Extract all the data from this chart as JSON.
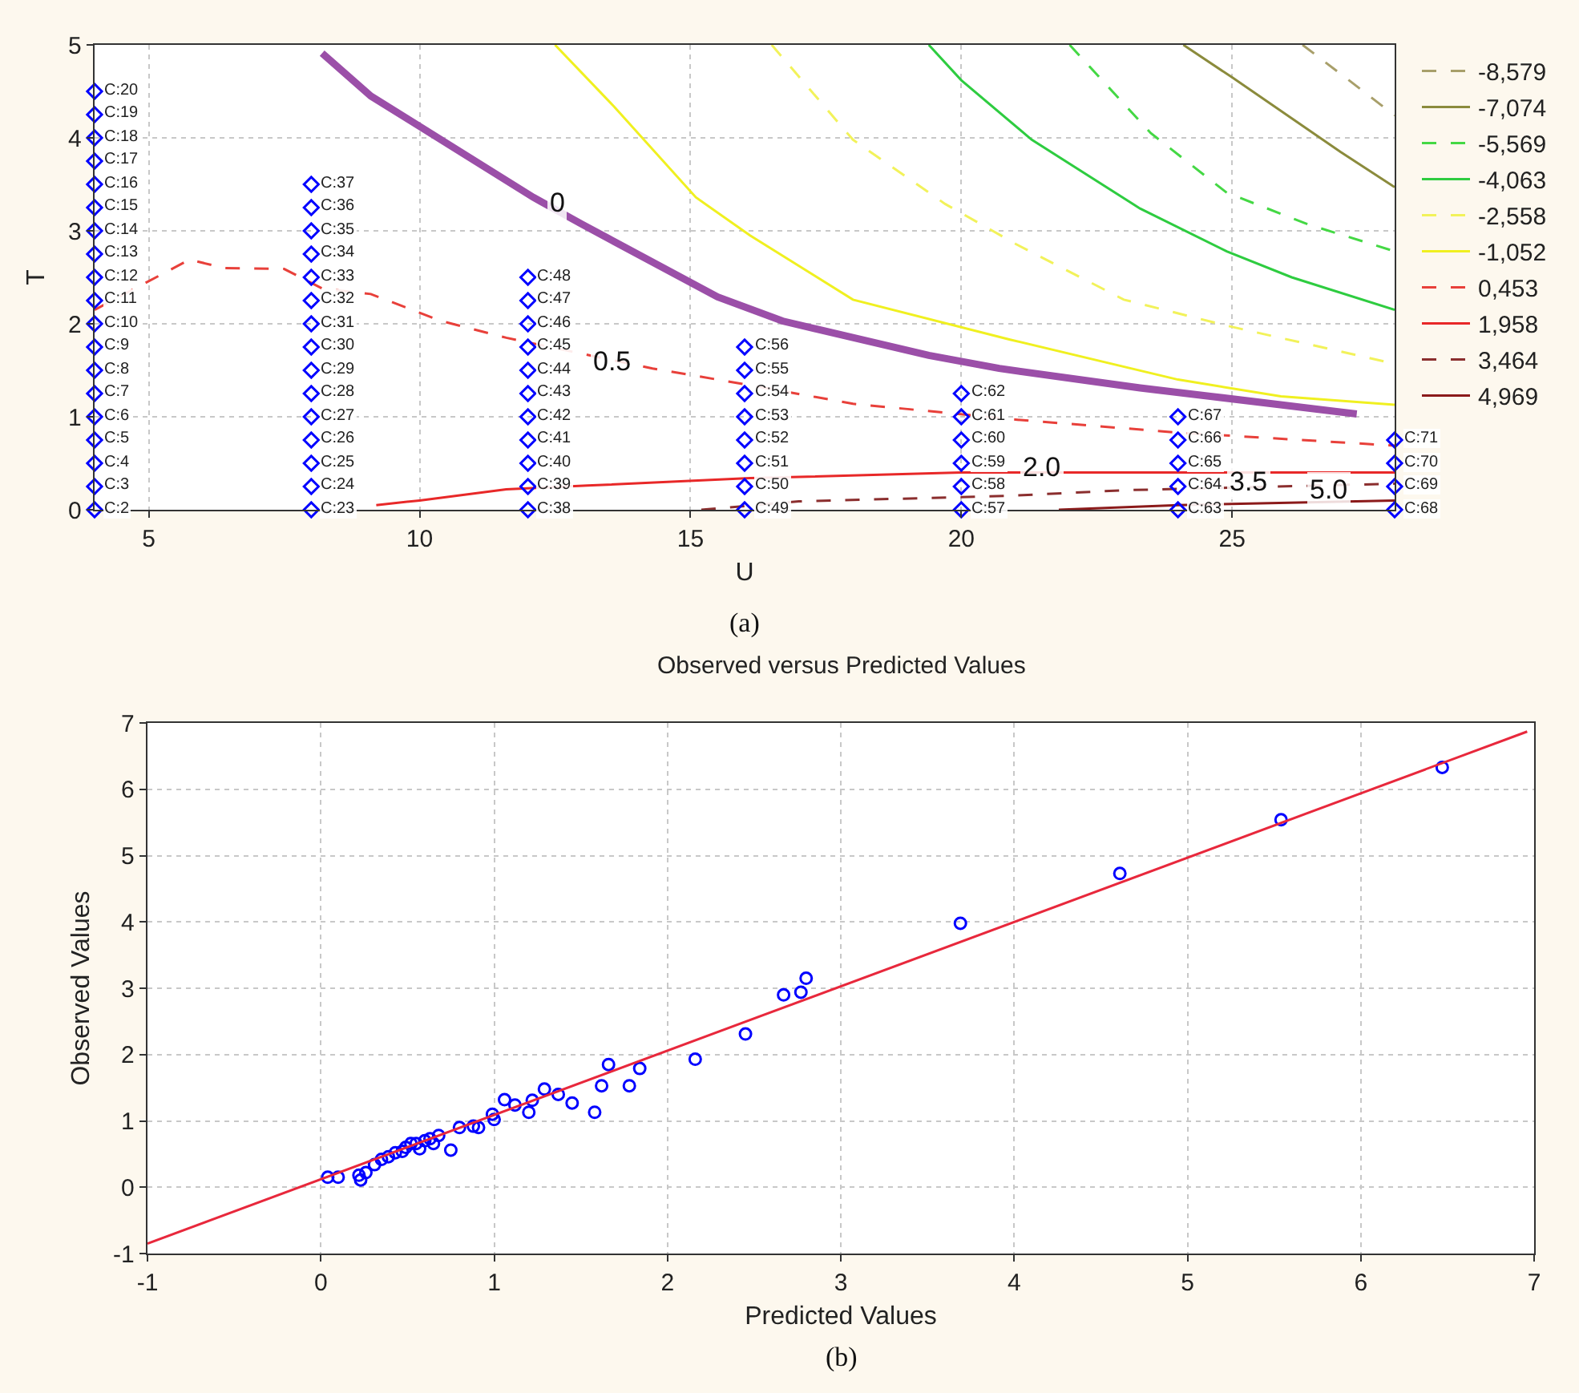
{
  "chart_data": [
    {
      "type": "line",
      "xlabel": "U",
      "ylabel": "T",
      "xlim": [
        4,
        28
      ],
      "ylim": [
        0,
        5
      ],
      "xticks": [
        5,
        10,
        15,
        20,
        25
      ],
      "yticks": [
        0,
        1,
        2,
        3,
        4,
        5
      ],
      "grid": true,
      "legend": "right",
      "series": [
        {
          "name": "-8,579",
          "color": "#a89f6a",
          "line_style": "dashed",
          "x": [
            26.3,
            27.2,
            28
          ],
          "values": [
            5,
            4.6,
            4.24
          ]
        },
        {
          "name": "-7,074",
          "color": "#8b8b3c",
          "line_style": "solid",
          "x": [
            24.1,
            25,
            26,
            27,
            28
          ],
          "values": [
            5,
            4.65,
            4.25,
            3.85,
            3.47
          ]
        },
        {
          "name": "-5,569",
          "color": "#44d844",
          "line_style": "dashed",
          "x": [
            22.0,
            23.5,
            24.9,
            26.4,
            28
          ],
          "values": [
            5,
            4.05,
            3.41,
            3.07,
            2.78
          ]
        },
        {
          "name": "-4,063",
          "color": "#2ecc40",
          "line_style": "solid",
          "x": [
            19.4,
            20.0,
            21.3,
            23.3,
            24.9,
            26.1,
            28
          ],
          "values": [
            5,
            4.62,
            3.98,
            3.24,
            2.78,
            2.5,
            2.15
          ]
        },
        {
          "name": "-2,558",
          "color": "#f2f25a",
          "line_style": "dashed",
          "x": [
            16.5,
            18.0,
            19.7,
            21.0,
            23.0,
            24.9,
            28
          ],
          "values": [
            5,
            3.98,
            3.29,
            2.86,
            2.26,
            1.98,
            1.57
          ]
        },
        {
          "name": "-1,052",
          "color": "#f0f020",
          "line_style": "solid",
          "x": [
            12.5,
            13.6,
            15.1,
            16.1,
            18.0,
            20.9,
            24.0,
            25.9,
            28
          ],
          "values": [
            5,
            4.33,
            3.36,
            2.95,
            2.26,
            1.83,
            1.4,
            1.22,
            1.13
          ]
        },
        {
          "name": "0,453",
          "color": "#e8403a",
          "line_style": "dashed",
          "x": [
            4,
            5.75,
            6.4,
            7.5,
            8.2,
            9.1,
            10.4,
            11.6,
            12.9,
            14.3,
            16.1,
            18.0,
            21.0,
            24.0,
            28
          ],
          "values": [
            2.15,
            2.69,
            2.6,
            2.59,
            2.38,
            2.32,
            2.03,
            1.85,
            1.69,
            1.52,
            1.34,
            1.14,
            0.97,
            0.83,
            0.69
          ]
        },
        {
          "name": "1,958",
          "color": "#e82828",
          "line_style": "solid",
          "x": [
            9.2,
            10.0,
            11.6,
            13.1,
            16.1,
            20.0,
            23.0,
            28
          ],
          "values": [
            0.05,
            0.1,
            0.22,
            0.26,
            0.34,
            0.4,
            0.4,
            0.4
          ]
        },
        {
          "name": "3,464",
          "color": "#8b2e2e",
          "line_style": "dashed",
          "x": [
            15.2,
            17.0,
            20.9,
            23.0,
            28
          ],
          "values": [
            0,
            0.09,
            0.15,
            0.21,
            0.28
          ]
        },
        {
          "name": "4,969",
          "color": "#8b1a1a",
          "line_style": "solid",
          "x": [
            21.8,
            24.0,
            28
          ],
          "values": [
            0,
            0.05,
            0.1
          ]
        },
        {
          "color": "#9b4fa8",
          "line_style": "solid",
          "x": [
            8.2,
            9.1,
            12.1,
            13.0,
            15.5,
            16.7,
            19.4,
            20.7,
            23.3,
            24.6,
            27.3
          ],
          "values": [
            4.91,
            4.45,
            3.36,
            3.07,
            2.29,
            2.03,
            1.66,
            1.52,
            1.31,
            1.22,
            1.03
          ]
        },
        {
          "type": "scatter",
          "marker": "diamond",
          "color": "#0000ff",
          "x": [
            4,
            4,
            4,
            4,
            4,
            4,
            4,
            4,
            4,
            4,
            4,
            4,
            4,
            4,
            4,
            4,
            4,
            4,
            4,
            8,
            8,
            8,
            8,
            8,
            8,
            8,
            8,
            8,
            8,
            8,
            8,
            8,
            8,
            8,
            12,
            12,
            12,
            12,
            12,
            12,
            12,
            12,
            12,
            12,
            12,
            16,
            16,
            16,
            16,
            16,
            16,
            16,
            16,
            20,
            20,
            20,
            20,
            20,
            20,
            24,
            24,
            24,
            24,
            24,
            28,
            28,
            28,
            28
          ],
          "values": [
            0,
            0.25,
            0.5,
            0.75,
            1,
            1.25,
            1.5,
            1.75,
            2,
            2.25,
            2.5,
            2.75,
            3,
            3.25,
            3.5,
            3.75,
            4,
            4.25,
            4.5,
            0,
            0.25,
            0.5,
            0.75,
            1,
            1.25,
            1.5,
            1.75,
            2,
            2.25,
            2.5,
            2.75,
            3,
            3.25,
            3.5,
            0,
            0.25,
            0.5,
            0.75,
            1,
            1.25,
            1.5,
            1.75,
            2,
            2.25,
            2.5,
            0,
            0.25,
            0.5,
            0.75,
            1,
            1.25,
            1.5,
            1.75,
            0,
            0.25,
            0.5,
            0.75,
            1,
            1.25,
            0,
            0.25,
            0.5,
            0.75,
            1,
            0,
            0.25,
            0.5,
            0.75
          ]
        }
      ],
      "annotations": [
        {
          "text": "C:2",
          "x": 4,
          "y": 0
        },
        {
          "text": "C:3",
          "x": 4,
          "y": 0.25
        },
        {
          "text": "C:4",
          "x": 4,
          "y": 0.5
        },
        {
          "text": "C:5",
          "x": 4,
          "y": 0.75
        },
        {
          "text": "C:6",
          "x": 4,
          "y": 1
        },
        {
          "text": "C:7",
          "x": 4,
          "y": 1.25
        },
        {
          "text": "C:8",
          "x": 4,
          "y": 1.5
        },
        {
          "text": "C:9",
          "x": 4,
          "y": 1.75
        },
        {
          "text": "C:10",
          "x": 4,
          "y": 2
        },
        {
          "text": "C:11",
          "x": 4,
          "y": 2.25
        },
        {
          "text": "C:12",
          "x": 4,
          "y": 2.5
        },
        {
          "text": "C:13",
          "x": 4,
          "y": 2.75
        },
        {
          "text": "C:14",
          "x": 4,
          "y": 3
        },
        {
          "text": "C:15",
          "x": 4,
          "y": 3.25
        },
        {
          "text": "C:16",
          "x": 4,
          "y": 3.5
        },
        {
          "text": "C:17",
          "x": 4,
          "y": 3.75
        },
        {
          "text": "C:18",
          "x": 4,
          "y": 4
        },
        {
          "text": "C:19",
          "x": 4,
          "y": 4.25
        },
        {
          "text": "C:20",
          "x": 4,
          "y": 4.5
        },
        {
          "text": "C:23",
          "x": 8,
          "y": 0
        },
        {
          "text": "C:24",
          "x": 8,
          "y": 0.25
        },
        {
          "text": "C:25",
          "x": 8,
          "y": 0.5
        },
        {
          "text": "C:26",
          "x": 8,
          "y": 0.75
        },
        {
          "text": "C:27",
          "x": 8,
          "y": 1
        },
        {
          "text": "C:28",
          "x": 8,
          "y": 1.25
        },
        {
          "text": "C:29",
          "x": 8,
          "y": 1.5
        },
        {
          "text": "C:30",
          "x": 8,
          "y": 1.75
        },
        {
          "text": "C:31",
          "x": 8,
          "y": 2
        },
        {
          "text": "C:32",
          "x": 8,
          "y": 2.25
        },
        {
          "text": "C:33",
          "x": 8,
          "y": 2.5
        },
        {
          "text": "C:34",
          "x": 8,
          "y": 2.75
        },
        {
          "text": "C:35",
          "x": 8,
          "y": 3
        },
        {
          "text": "C:36",
          "x": 8,
          "y": 3.25
        },
        {
          "text": "C:37",
          "x": 8,
          "y": 3.5
        },
        {
          "text": "C:38",
          "x": 12,
          "y": 0
        },
        {
          "text": "C:39",
          "x": 12,
          "y": 0.25
        },
        {
          "text": "C:40",
          "x": 12,
          "y": 0.5
        },
        {
          "text": "C:41",
          "x": 12,
          "y": 0.75
        },
        {
          "text": "C:42",
          "x": 12,
          "y": 1
        },
        {
          "text": "C:43",
          "x": 12,
          "y": 1.25
        },
        {
          "text": "C:44",
          "x": 12,
          "y": 1.5
        },
        {
          "text": "C:45",
          "x": 12,
          "y": 1.75
        },
        {
          "text": "C:46",
          "x": 12,
          "y": 2
        },
        {
          "text": "C:47",
          "x": 12,
          "y": 2.25
        },
        {
          "text": "C:48",
          "x": 12,
          "y": 2.5
        },
        {
          "text": "C:49",
          "x": 16,
          "y": 0
        },
        {
          "text": "C:50",
          "x": 16,
          "y": 0.25
        },
        {
          "text": "C:51",
          "x": 16,
          "y": 0.5
        },
        {
          "text": "C:52",
          "x": 16,
          "y": 0.75
        },
        {
          "text": "C:53",
          "x": 16,
          "y": 1
        },
        {
          "text": "C:54",
          "x": 16,
          "y": 1.25
        },
        {
          "text": "C:55",
          "x": 16,
          "y": 1.5
        },
        {
          "text": "C:56",
          "x": 16,
          "y": 1.75
        },
        {
          "text": "C:57",
          "x": 20,
          "y": 0
        },
        {
          "text": "C:58",
          "x": 20,
          "y": 0.25
        },
        {
          "text": "C:59",
          "x": 20,
          "y": 0.5
        },
        {
          "text": "C:60",
          "x": 20,
          "y": 0.75
        },
        {
          "text": "C:61",
          "x": 20,
          "y": 1
        },
        {
          "text": "C:62",
          "x": 20,
          "y": 1.25
        },
        {
          "text": "C:63",
          "x": 24,
          "y": 0
        },
        {
          "text": "C:64",
          "x": 24,
          "y": 0.25
        },
        {
          "text": "C:65",
          "x": 24,
          "y": 0.5
        },
        {
          "text": "C:66",
          "x": 24,
          "y": 0.75
        },
        {
          "text": "C:67",
          "x": 24,
          "y": 1
        },
        {
          "text": "C:68",
          "x": 28,
          "y": 0
        },
        {
          "text": "C:69",
          "x": 28,
          "y": 0.25
        },
        {
          "text": "C:70",
          "x": 28,
          "y": 0.5
        },
        {
          "text": "C:71",
          "x": 28,
          "y": 0.75
        },
        {
          "text": "0",
          "x": 12.55,
          "y": 3.3
        },
        {
          "text": "0.5",
          "x": 13.55,
          "y": 1.6
        },
        {
          "text": "2.0",
          "x": 21.5,
          "y": 0.45
        },
        {
          "text": "3.5",
          "x": 25.3,
          "y": 0.31
        },
        {
          "text": "5.0",
          "x": 26.8,
          "y": 0.22
        },
        "(a)"
      ]
    },
    {
      "type": "scatter",
      "title": "Observed versus Predicted Values",
      "xlabel": "Predicted Values",
      "ylabel": "Observed Values",
      "xlim": [
        -1,
        7
      ],
      "ylim": [
        -1,
        7
      ],
      "xticks": [
        -1,
        0,
        1,
        2,
        3,
        4,
        5,
        6,
        7
      ],
      "yticks": [
        -1,
        0,
        1,
        2,
        3,
        4,
        5,
        6,
        7
      ],
      "grid": true,
      "series": [
        {
          "marker": "circle",
          "color": "#0000ff",
          "x": [
            0.04,
            0.1,
            0.22,
            0.23,
            0.26,
            0.31,
            0.35,
            0.39,
            0.43,
            0.47,
            0.49,
            0.52,
            0.55,
            0.57,
            0.6,
            0.63,
            0.65,
            0.68,
            0.75,
            0.8,
            0.88,
            0.91,
            0.99,
            1.0,
            1.06,
            1.12,
            1.2,
            1.22,
            1.29,
            1.37,
            1.45,
            1.58,
            1.62,
            1.66,
            1.78,
            1.84,
            2.16,
            2.45,
            2.67,
            2.77,
            2.8,
            3.69,
            4.61,
            5.54,
            6.47
          ],
          "values": [
            0.15,
            0.15,
            0.18,
            0.11,
            0.22,
            0.34,
            0.42,
            0.46,
            0.52,
            0.54,
            0.6,
            0.66,
            0.66,
            0.58,
            0.7,
            0.73,
            0.66,
            0.78,
            0.56,
            0.9,
            0.92,
            0.9,
            1.1,
            1.02,
            1.32,
            1.24,
            1.13,
            1.31,
            1.48,
            1.4,
            1.27,
            1.13,
            1.53,
            1.85,
            1.53,
            1.79,
            1.93,
            2.31,
            2.9,
            2.94,
            3.15,
            3.98,
            4.73,
            5.54,
            6.33
          ]
        },
        {
          "type": "line",
          "color": "#e8283c",
          "x": [
            -1,
            6.96
          ],
          "values": [
            -0.85,
            6.87
          ]
        }
      ],
      "annotations": [
        "(b)"
      ]
    }
  ]
}
